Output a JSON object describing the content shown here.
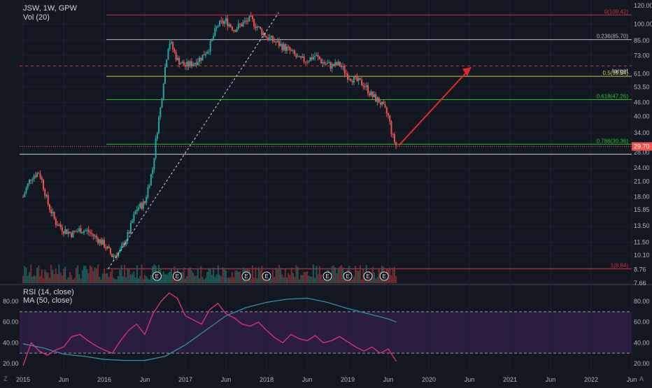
{
  "chart_data": [
    {
      "type": "candlestick",
      "title": "JSW, 1W, GPW",
      "volume_label": "Vol (20)",
      "y_scale": "log",
      "yticks": [
        "120.00",
        "100.00",
        "85.00",
        "73.00",
        "61.00",
        "53.50",
        "46.00",
        "40.00",
        "34.00",
        "28.00",
        "24.00",
        "21.00",
        "18.00",
        "15.85",
        "13.50",
        "11.50",
        "10.10",
        "8.76",
        "7.66"
      ],
      "xticks": [
        "2015",
        "Jun",
        "2016",
        "Jun",
        "2017",
        "Jun",
        "2018",
        "Jun",
        "2019",
        "Jun",
        "2020",
        "Jun",
        "2021",
        "Jun",
        "2022",
        "Jun"
      ],
      "last_price": "29.70",
      "fib_levels": [
        {
          "label": "0(109.42)",
          "value": 109.42,
          "color": "#cc2f3c"
        },
        {
          "label": "0.236(85.70)",
          "value": 85.7,
          "color": "#b2b5be"
        },
        {
          "label": "0.5(59.54)",
          "value": 59.54,
          "color": "#c9c930"
        },
        {
          "label": "0.618(47.26)",
          "value": 47.26,
          "color": "#22c22a"
        },
        {
          "label": "0.786(30.36)",
          "value": 30.36,
          "color": "#22c22a"
        },
        {
          "label": "1(8.84)",
          "value": 8.84,
          "color": "#cc2f3c"
        }
      ],
      "target_label": "target",
      "target_value": 66,
      "earnings_marker": "E",
      "series": [
        {
          "name": "price_weekly_approx",
          "t": [
            2015.0,
            2015.1,
            2015.2,
            2015.3,
            2015.4,
            2015.5,
            2015.6,
            2015.7,
            2015.8,
            2015.9,
            2016.0,
            2016.1,
            2016.2,
            2016.3,
            2016.4,
            2016.5,
            2016.6,
            2016.7,
            2016.8,
            2016.9,
            2017.0,
            2017.1,
            2017.2,
            2017.3,
            2017.4,
            2017.5,
            2017.6,
            2017.7,
            2017.8,
            2017.9,
            2018.0,
            2018.1,
            2018.2,
            2018.3,
            2018.4,
            2018.5,
            2018.6,
            2018.7,
            2018.8,
            2018.9,
            2019.0,
            2019.1,
            2019.2,
            2019.3,
            2019.4,
            2019.5,
            2019.55,
            2019.6
          ],
          "values": [
            18,
            22,
            23,
            17,
            14,
            13,
            12.5,
            13,
            12.8,
            12,
            11.2,
            10,
            10.5,
            12.5,
            16,
            17,
            24,
            45,
            85,
            70,
            66,
            68,
            72,
            80,
            99,
            103,
            95,
            100,
            105,
            96,
            88,
            84,
            80,
            76,
            70,
            70,
            73,
            68,
            66,
            67,
            60,
            57,
            55,
            49,
            46,
            40,
            33,
            29.7
          ]
        }
      ]
    },
    {
      "type": "line",
      "title": "RSI (14, close)",
      "ma_label": "MA (50, close)",
      "yticks": [
        "80.00",
        "60.00",
        "40.00",
        "20.00"
      ],
      "bands": [
        30,
        70
      ],
      "series": [
        {
          "name": "RSI",
          "t": [
            2015.0,
            2015.1,
            2015.2,
            2015.3,
            2015.4,
            2015.5,
            2015.6,
            2015.7,
            2015.8,
            2015.9,
            2016.0,
            2016.1,
            2016.2,
            2016.3,
            2016.4,
            2016.5,
            2016.6,
            2016.7,
            2016.8,
            2016.9,
            2017.0,
            2017.1,
            2017.2,
            2017.3,
            2017.4,
            2017.5,
            2017.6,
            2017.7,
            2017.8,
            2017.9,
            2018.0,
            2018.1,
            2018.2,
            2018.3,
            2018.4,
            2018.5,
            2018.6,
            2018.7,
            2018.8,
            2018.9,
            2019.0,
            2019.1,
            2019.2,
            2019.3,
            2019.4,
            2019.5,
            2019.55,
            2019.6
          ],
          "values": [
            18,
            40,
            32,
            28,
            33,
            36,
            46,
            48,
            42,
            37,
            33,
            30,
            42,
            52,
            58,
            48,
            68,
            80,
            88,
            83,
            66,
            62,
            58,
            72,
            78,
            68,
            64,
            58,
            56,
            60,
            52,
            45,
            40,
            48,
            44,
            42,
            47,
            40,
            42,
            46,
            41,
            36,
            32,
            36,
            30,
            34,
            28,
            22
          ]
        },
        {
          "name": "MA",
          "t": [
            2015.0,
            2015.25,
            2015.5,
            2015.75,
            2016.0,
            2016.25,
            2016.5,
            2016.75,
            2017.0,
            2017.25,
            2017.5,
            2017.75,
            2018.0,
            2018.25,
            2018.5,
            2018.75,
            2019.0,
            2019.25,
            2019.5,
            2019.6
          ],
          "values": [
            39,
            35,
            29,
            27,
            24,
            23,
            23,
            27,
            38,
            52,
            66,
            74,
            79,
            82,
            83,
            79,
            73,
            68,
            63,
            60
          ]
        }
      ]
    }
  ],
  "ui": {
    "tz_label": "Z",
    "auto_label": "A"
  }
}
